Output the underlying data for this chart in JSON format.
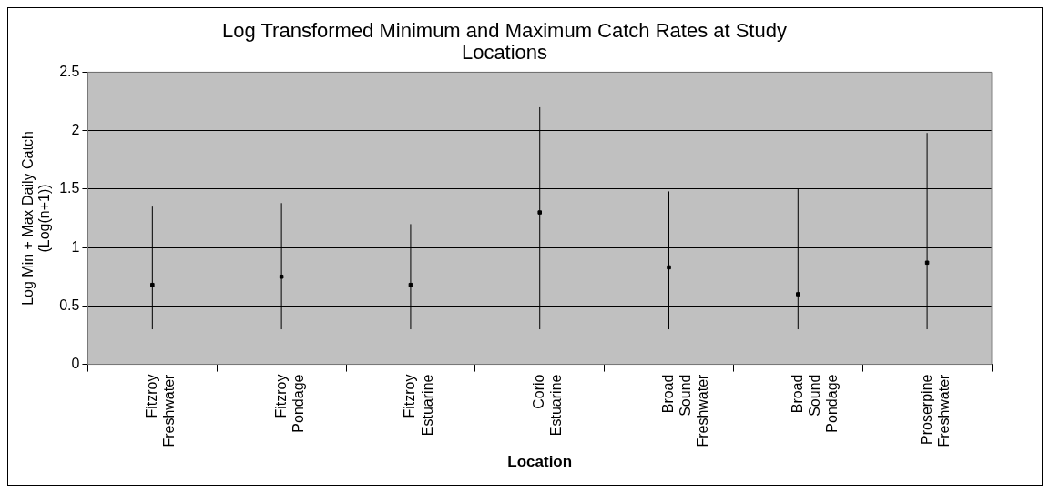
{
  "chart_data": {
    "type": "scatter",
    "title": "Log Transformed Minimum and Maximum Catch Rates at Study Locations",
    "xlabel": "Location",
    "ylabel": "Log Min + Max Daily Catch (Log(n+1))",
    "categories": [
      "Fitzroy Freshwater",
      "Fitzroy Pondage",
      "Fitzroy Estuarine",
      "Corio Estuarine",
      "Broad Sound Freshwater",
      "Broad Sound Pondage",
      "Proserpine Freshwater"
    ],
    "series": [
      {
        "color": "#000000",
        "values": [
          0.68,
          0.75,
          0.68,
          1.3,
          0.83,
          0.6,
          0.87
        ],
        "errors": [
          [
            0.3,
            1.35
          ],
          [
            0.3,
            1.38
          ],
          [
            0.3,
            1.2
          ],
          [
            0.3,
            2.2
          ],
          [
            0.3,
            1.48
          ],
          [
            0.3,
            1.5
          ],
          [
            0.3,
            1.98
          ]
        ]
      }
    ],
    "ylim": [
      0,
      2.5
    ],
    "yticks": [
      0,
      0.5,
      1,
      1.5,
      2,
      2.5
    ],
    "grid": "y",
    "legend": false,
    "marker": "square"
  }
}
